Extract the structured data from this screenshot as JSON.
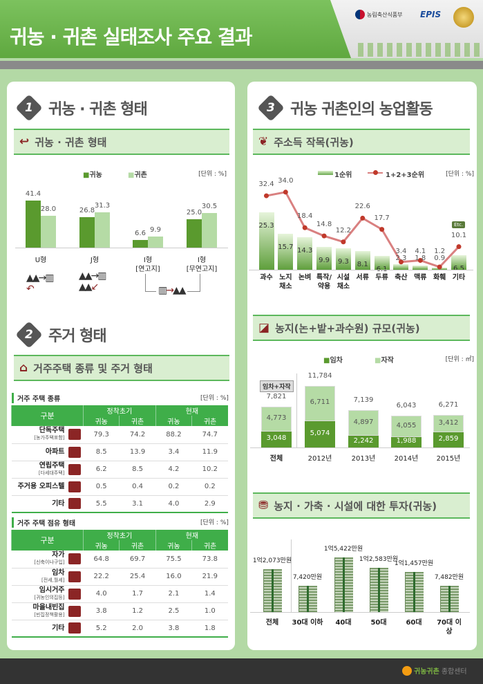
{
  "header": {
    "title": "귀농 · 귀촌 실태조사 주요 결과",
    "logo1": "농림축산식품부",
    "logo2": "EPIS"
  },
  "sec1": {
    "num": "1",
    "title": "귀농 · 귀촌 형태",
    "band": "귀농 · 귀촌 형태",
    "unit": "[단위 : %]",
    "chart_data": {
      "type": "bar",
      "series": [
        {
          "name": "귀농",
          "values": [
            41.4,
            26.8,
            6.6,
            25.0
          ]
        },
        {
          "name": "귀촌",
          "values": [
            28.0,
            31.3,
            9.9,
            30.5
          ]
        }
      ],
      "categories": [
        "U형",
        "J형",
        "I형\n[연고지]",
        "I형\n[무연고지]"
      ],
      "cat_labels": [
        "U형",
        "J형",
        "I형",
        "I형"
      ],
      "cat_sub": [
        "",
        "",
        "[연고지]",
        "[무연고지]"
      ],
      "colors": [
        "#5a9a2e",
        "#b5dba5"
      ]
    }
  },
  "sec2": {
    "num": "2",
    "title": "주거 형태",
    "band": "거주주택 종류 및 주거 형태",
    "t1": {
      "caption": "거주 주택 종류",
      "unit": "[단위 : %]",
      "h": [
        "구분",
        "정착초기",
        "현재",
        "귀농",
        "귀촌",
        "귀농",
        "귀촌"
      ],
      "rows": [
        {
          "l": "단독주택",
          "s": "[농가주택포함]",
          "icon": "house-icon",
          "v": [
            "79.3",
            "74.2",
            "88.2",
            "74.7"
          ]
        },
        {
          "l": "아파트",
          "s": "",
          "icon": "apartment-icon",
          "v": [
            "8.5",
            "13.9",
            "3.4",
            "11.9"
          ]
        },
        {
          "l": "연립주택",
          "s": "[다세대주택]",
          "icon": "rowhouse-icon",
          "v": [
            "6.2",
            "8.5",
            "4.2",
            "10.2"
          ]
        },
        {
          "l": "주거용 오피스텔",
          "s": "",
          "icon": "officetel-icon",
          "v": [
            "0.5",
            "0.4",
            "0.2",
            "0.2"
          ]
        },
        {
          "l": "기타",
          "s": "",
          "icon": "etc-icon",
          "v": [
            "5.5",
            "3.1",
            "4.0",
            "2.9"
          ]
        }
      ]
    },
    "t2": {
      "caption": "거주 주택 점유 형태",
      "unit": "[단위 : %]",
      "h": [
        "구분",
        "정착초기",
        "현재",
        "귀농",
        "귀촌",
        "귀농",
        "귀촌"
      ],
      "rows": [
        {
          "l": "자가",
          "s": "[신축이나구입]",
          "icon": "house-icon",
          "v": [
            "64.8",
            "69.7",
            "75.5",
            "73.8"
          ]
        },
        {
          "l": "임차",
          "s": "[전세,월세]",
          "icon": "rent-sign-icon",
          "v": [
            "22.2",
            "25.4",
            "16.0",
            "21.9"
          ]
        },
        {
          "l": "임시거주",
          "s": "[귀농인의집등]",
          "icon": "tent-icon",
          "v": [
            "4.0",
            "1.7",
            "2.1",
            "1.4"
          ]
        },
        {
          "l": "마을내빈집",
          "s": "[빈집정책활용]",
          "icon": "hanok-icon",
          "v": [
            "3.8",
            "1.2",
            "2.5",
            "1.0"
          ]
        },
        {
          "l": "기타",
          "s": "",
          "icon": "etc-icon",
          "v": [
            "5.2",
            "2.0",
            "3.8",
            "1.8"
          ]
        }
      ]
    }
  },
  "sec3": {
    "num": "3",
    "title": "귀농 귀촌인의 농업활동",
    "band": "주소득 작목(귀농)",
    "unit": "[단위 : %]",
    "chart_data": {
      "type": "bar+line",
      "categories": [
        "과수",
        "노지\n채소",
        "논벼",
        "특작/\n약용",
        "시설\n채소",
        "서류",
        "두류",
        "축산",
        "맥류",
        "화훼",
        "기타"
      ],
      "series": [
        {
          "name": "1순위",
          "type": "bar",
          "values": [
            25.3,
            15.7,
            14.3,
            9.9,
            9.3,
            8.1,
            6.1,
            2.3,
            1.8,
            0.9,
            6.5
          ]
        },
        {
          "name": "1+2+3순위",
          "type": "line",
          "values": [
            32.4,
            34.0,
            18.4,
            14.8,
            12.2,
            22.6,
            17.7,
            3.4,
            4.1,
            1.2,
            10.1
          ]
        }
      ],
      "etc_badge": "Etc."
    }
  },
  "land": {
    "band": "농지(논+밭+과수원) 규모(귀농)",
    "unit": "[단위 : ㎡]",
    "total_tag": "임차+자작",
    "chart_data": {
      "type": "stacked-bar",
      "categories": [
        "전체",
        "2012년",
        "2013년",
        "2014년",
        "2015년"
      ],
      "series": [
        {
          "name": "임차",
          "values": [
            3048,
            5074,
            2242,
            1988,
            2859
          ],
          "labels": [
            "3,048",
            "5,074",
            "2,242",
            "1,988",
            "2,859"
          ]
        },
        {
          "name": "자작",
          "values": [
            4773,
            6711,
            4897,
            4055,
            3412
          ],
          "labels": [
            "4,773",
            "6,711",
            "4,897",
            "4,055",
            "3,412"
          ]
        }
      ],
      "totals": [
        "7,821",
        "11,784",
        "7,139",
        "6,043",
        "6,271"
      ],
      "colors": [
        "#5a9a2e",
        "#b5dba5"
      ]
    }
  },
  "invest": {
    "band": "농지 · 가축 · 시설에 대한 투자(귀농)",
    "chart_data": {
      "type": "bar",
      "unit": "만원",
      "categories": [
        "전체",
        "30대 이하",
        "40대",
        "50대",
        "60대",
        "70대 이상"
      ],
      "values": [
        12073,
        7420,
        15422,
        12583,
        11457,
        7482
      ],
      "labels": [
        "1억2,073만원",
        "7,420만원",
        "1억5,422만원",
        "1억2,583만원",
        "1억1,457만원",
        "7,482만원"
      ]
    }
  },
  "footer": {
    "brand": "귀농귀촌",
    "suffix": "종합센터"
  }
}
